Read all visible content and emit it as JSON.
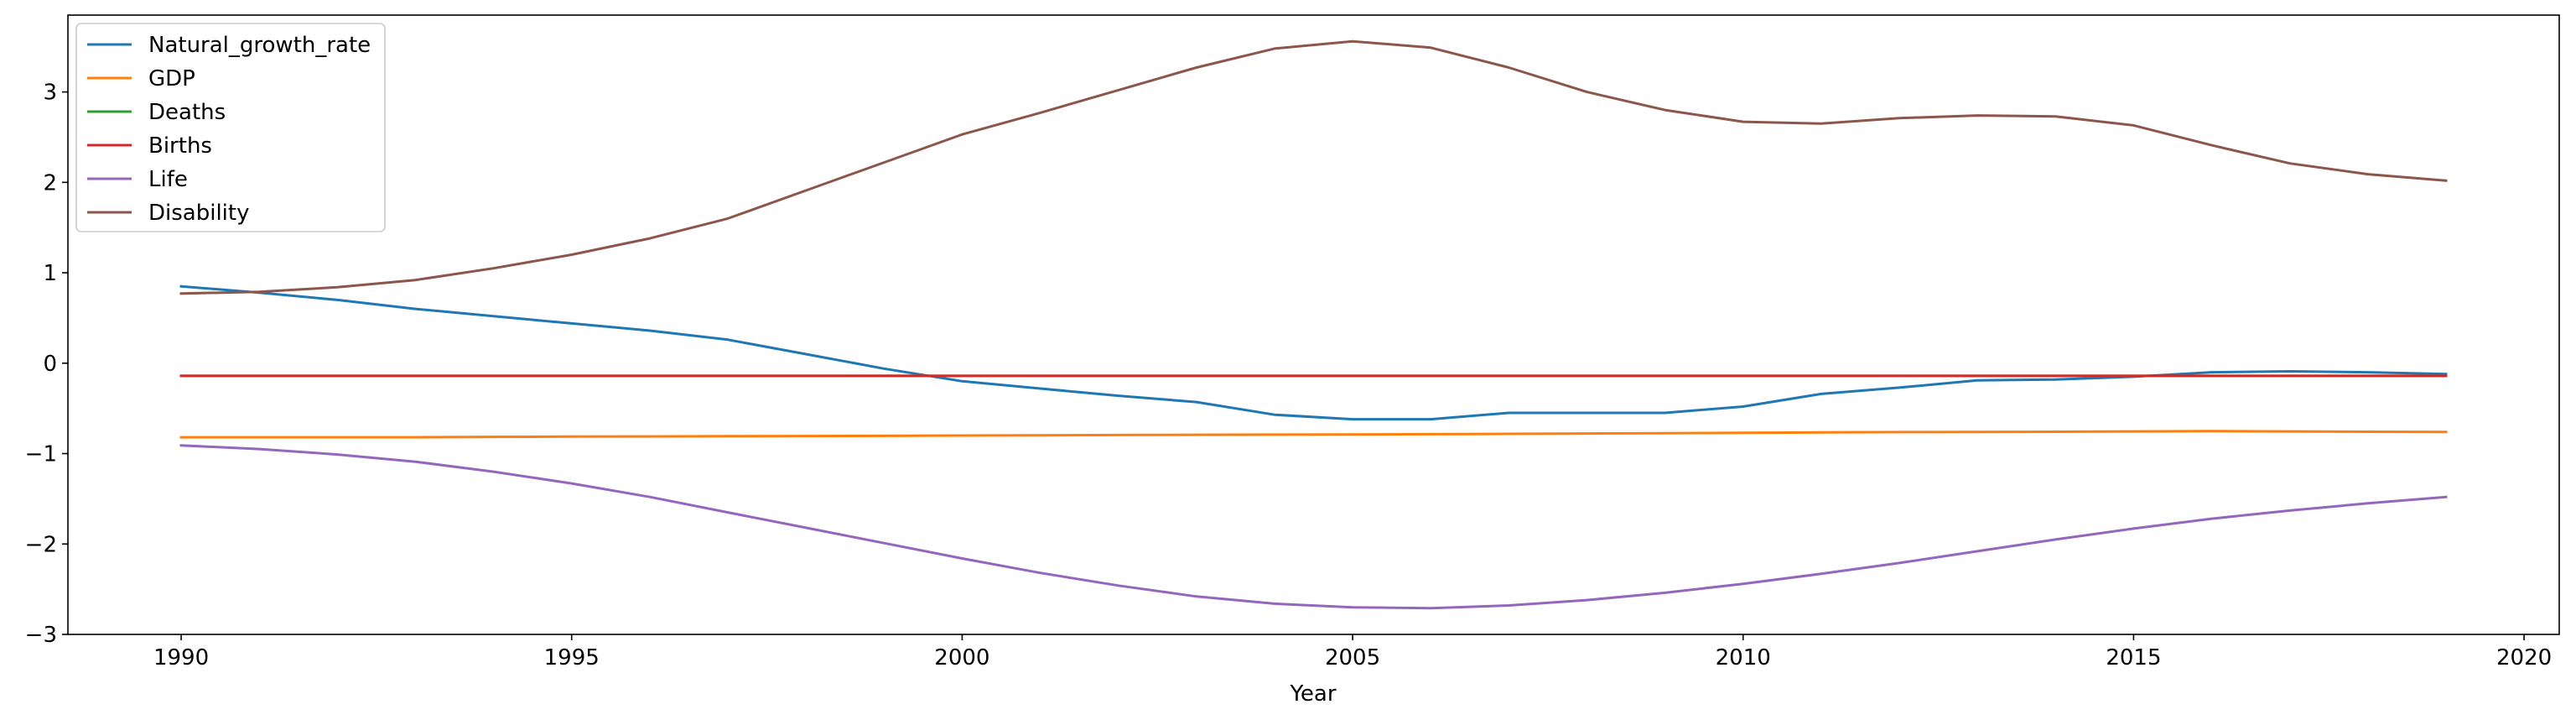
{
  "chart_data": {
    "type": "line",
    "title": "",
    "xlabel": "Year",
    "ylabel": "",
    "xlim": [
      1988.55,
      2020.45
    ],
    "ylim": [
      -3,
      3.85
    ],
    "xticks": [
      1990,
      1995,
      2000,
      2005,
      2010,
      2015,
      2020
    ],
    "yticks": [
      -3,
      -2,
      -1,
      0,
      1,
      2,
      3
    ],
    "grid": false,
    "legend_position": "upper left",
    "x": [
      1990,
      1991,
      1992,
      1993,
      1994,
      1995,
      1996,
      1997,
      1998,
      1999,
      2000,
      2001,
      2002,
      2003,
      2004,
      2005,
      2006,
      2007,
      2008,
      2009,
      2010,
      2011,
      2012,
      2013,
      2014,
      2015,
      2016,
      2017,
      2018,
      2019
    ],
    "series": [
      {
        "name": "Natural_growth_rate",
        "color": "#1f77b4",
        "values": [
          0.85,
          0.78,
          0.7,
          0.6,
          0.52,
          0.44,
          0.36,
          0.26,
          0.1,
          -0.06,
          -0.2,
          -0.28,
          -0.36,
          -0.43,
          -0.57,
          -0.62,
          -0.62,
          -0.55,
          -0.55,
          -0.55,
          -0.48,
          -0.34,
          -0.27,
          -0.19,
          -0.18,
          -0.15,
          -0.1,
          -0.09,
          -0.1,
          -0.12
        ]
      },
      {
        "name": "GDP",
        "color": "#ff7f0e",
        "values": [
          -0.82,
          -0.82,
          -0.82,
          -0.82,
          -0.815,
          -0.812,
          -0.81,
          -0.808,
          -0.806,
          -0.804,
          -0.8,
          -0.797,
          -0.795,
          -0.792,
          -0.79,
          -0.788,
          -0.785,
          -0.782,
          -0.778,
          -0.775,
          -0.77,
          -0.766,
          -0.762,
          -0.76,
          -0.758,
          -0.755,
          -0.752,
          -0.755,
          -0.758,
          -0.76
        ]
      },
      {
        "name": "Deaths",
        "color": "#2ca02c",
        "values": [
          -0.14,
          -0.14,
          -0.14,
          -0.14,
          -0.14,
          -0.14,
          -0.14,
          -0.14,
          -0.14,
          -0.14,
          -0.14,
          -0.14,
          -0.14,
          -0.14,
          -0.14,
          -0.14,
          -0.14,
          -0.14,
          -0.14,
          -0.14,
          -0.14,
          -0.14,
          -0.14,
          -0.14,
          -0.14,
          -0.14,
          -0.14,
          -0.14,
          -0.14,
          -0.14
        ]
      },
      {
        "name": "Births",
        "color": "#d62728",
        "values": [
          -0.14,
          -0.14,
          -0.14,
          -0.14,
          -0.14,
          -0.14,
          -0.14,
          -0.14,
          -0.14,
          -0.14,
          -0.14,
          -0.14,
          -0.14,
          -0.14,
          -0.14,
          -0.14,
          -0.14,
          -0.14,
          -0.14,
          -0.14,
          -0.14,
          -0.14,
          -0.14,
          -0.14,
          -0.14,
          -0.14,
          -0.14,
          -0.14,
          -0.14,
          -0.14
        ]
      },
      {
        "name": "Life",
        "color": "#9467bd",
        "values": [
          -0.91,
          -0.95,
          -1.01,
          -1.09,
          -1.2,
          -1.33,
          -1.48,
          -1.65,
          -1.82,
          -1.99,
          -2.16,
          -2.32,
          -2.46,
          -2.58,
          -2.66,
          -2.7,
          -2.71,
          -2.68,
          -2.62,
          -2.54,
          -2.44,
          -2.33,
          -2.21,
          -2.08,
          -1.95,
          -1.83,
          -1.72,
          -1.63,
          -1.55,
          -1.48
        ]
      },
      {
        "name": "Disability",
        "color": "#8c564b",
        "values": [
          0.77,
          0.79,
          0.84,
          0.92,
          1.05,
          1.2,
          1.38,
          1.6,
          1.91,
          2.22,
          2.53,
          2.77,
          3.02,
          3.27,
          3.48,
          3.56,
          3.49,
          3.27,
          3.0,
          2.8,
          2.67,
          2.65,
          2.71,
          2.74,
          2.73,
          2.63,
          2.41,
          2.21,
          2.09,
          2.02
        ]
      }
    ]
  }
}
